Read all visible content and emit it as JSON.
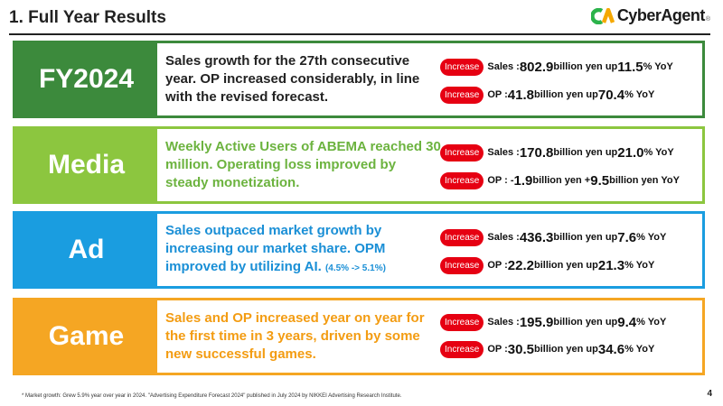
{
  "header": {
    "title": "1. Full Year Results"
  },
  "logo": {
    "text": "CyberAgent",
    "reg": "®",
    "colors": [
      "#2bb34b",
      "#f5a800"
    ]
  },
  "badge_text": "Increase",
  "colors": {
    "fy": "#3c8a3c",
    "media": "#8cc63f",
    "ad": "#1a9de0",
    "game": "#f5a623",
    "badge": "#e60012"
  },
  "rows": [
    {
      "label": "FY2024",
      "desc": "Sales growth for the 27th consecutive year.  OP increased considerably, in line with the revised  forecast.",
      "note": "",
      "m1": {
        "label": "Sales : ",
        "value": "802.9",
        "unit": " billion yen  up ",
        "pct": "11.5",
        "yoy": "% YoY"
      },
      "m2": {
        "label": "OP : ",
        "value": "41.8",
        "unit": " billion yen  up ",
        "pct": "70.4",
        "yoy": "% YoY"
      }
    },
    {
      "label": "Media",
      "desc": "Weekly Active Users of ABEMA reached 30 million. Operating loss improved by steady monetization.",
      "note": "",
      "m1": {
        "label": "Sales : ",
        "value": "170.8",
        "unit": " billion yen  up ",
        "pct": "21.0",
        "yoy": "% YoY"
      },
      "m2": {
        "label": "OP : -",
        "value": "1.9",
        "unit": " billion yen  +",
        "pct": "9.5",
        "yoy": " billion yen YoY"
      }
    },
    {
      "label": "Ad",
      "desc": "Sales outpaced market growth by increasing our market share. OPM improved by utilizing AI. ",
      "note": "(4.5% -> 5.1%)",
      "m1": {
        "label": "Sales : ",
        "value": "436.3",
        "unit": "billion yen  up ",
        "pct": "7.6",
        "yoy": "% YoY"
      },
      "m2": {
        "label": "OP : ",
        "value": "22.2",
        "unit": " billion yen  up ",
        "pct": "21.3",
        "yoy": "% YoY"
      }
    },
    {
      "label": "Game",
      "desc": "Sales and OP increased year on year for the first time in 3 years, driven by some new successful games.",
      "note": "",
      "m1": {
        "label": "Sales : ",
        "value": "195.9",
        "unit": " billion yen  up ",
        "pct": "9.4",
        "yoy": "% YoY"
      },
      "m2": {
        "label": "OP : ",
        "value": "30.5",
        "unit": " billion yen  up ",
        "pct": "34.6",
        "yoy": "% YoY"
      }
    }
  ],
  "footnote": "*  Market growth: Grew 5.9% year over year in 2024. \"Advertising Expenditure Forecast 2024\" published in July 2024 by NIKKEI Advertising Research Institute.",
  "page_number": "4"
}
